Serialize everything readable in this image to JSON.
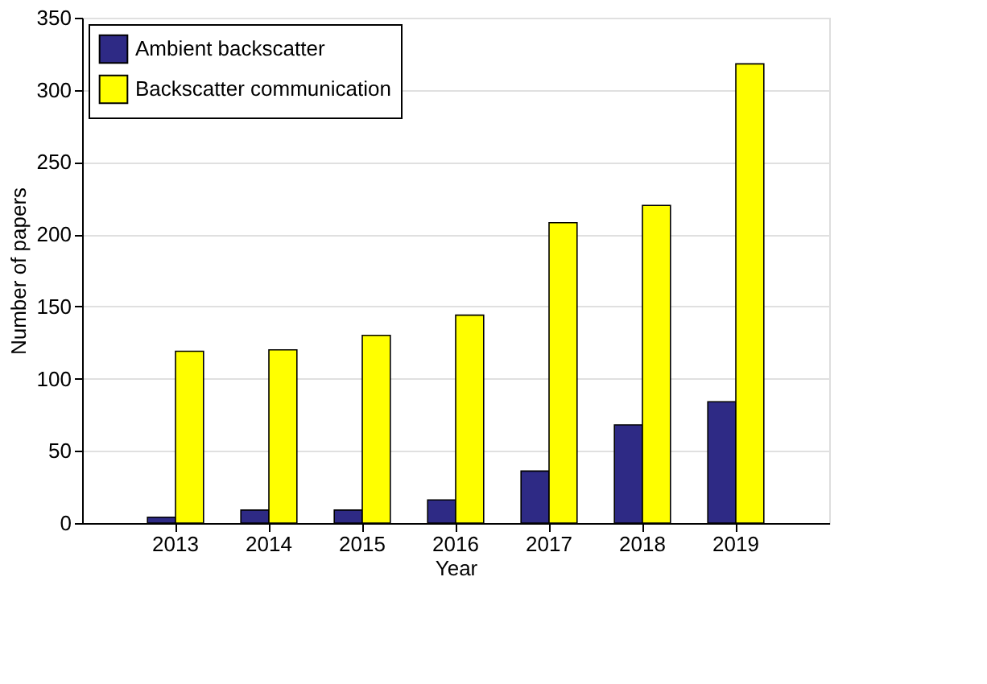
{
  "chart_data": {
    "type": "bar",
    "xlabel": "Year",
    "ylabel": "Number of papers",
    "categories": [
      "2013",
      "2014",
      "2015",
      "2016",
      "2017",
      "2018",
      "2019"
    ],
    "series": [
      {
        "name": "Ambient backscatter",
        "color": "#2e2a85",
        "values": [
          4,
          9,
          9,
          16,
          36,
          68,
          84
        ]
      },
      {
        "name": "Backscatter communication",
        "color": "#ffff00",
        "values": [
          119,
          120,
          130,
          144,
          208,
          220,
          318
        ]
      }
    ],
    "ylim": [
      0,
      350
    ],
    "yticks": [
      0,
      50,
      100,
      150,
      200,
      250,
      300,
      350
    ],
    "grid": "y",
    "legend": "top left"
  }
}
